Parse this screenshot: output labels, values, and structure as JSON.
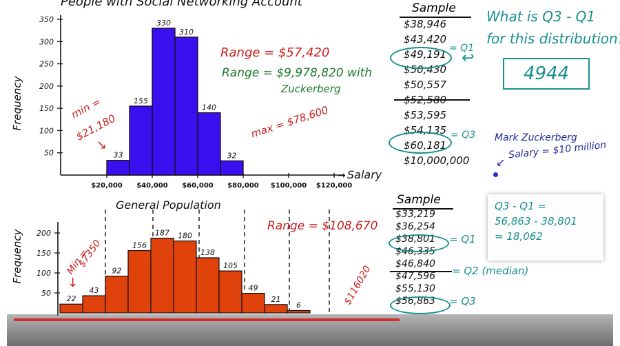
{
  "chart_data": [
    {
      "type": "bar",
      "title": "People with Social Networking Account",
      "xlabel": "Salary",
      "ylabel": "Frequency",
      "ylim": [
        0,
        350
      ],
      "yticks": [
        "50",
        "100",
        "150",
        "200",
        "250",
        "300",
        "350"
      ],
      "xticks": [
        "$20,000",
        "$40,000",
        "$60,000",
        "$80,000",
        "$100,000",
        "$120,000"
      ],
      "categories": [
        "$20,000-$30,000",
        "$30,000-$40,000",
        "$40,000-$50,000",
        "$50,000-$60,000",
        "$60,000-$70,000",
        "$70,000-$80,000"
      ],
      "values": [
        33,
        155,
        330,
        310,
        140,
        32
      ],
      "data_labels": [
        "33",
        "155",
        "330",
        "310",
        "140",
        "32"
      ],
      "bar_color": "#3b10f0"
    },
    {
      "type": "bar",
      "title": "General Population",
      "ylabel": "Frequency",
      "ylim": [
        0,
        200
      ],
      "yticks": [
        "50",
        "100",
        "150",
        "200"
      ],
      "values": [
        22,
        43,
        92,
        156,
        187,
        180,
        138,
        105,
        49,
        21,
        6
      ],
      "data_labels": [
        "22",
        "43",
        "92",
        "156",
        "187",
        "180",
        "138",
        "105",
        "49",
        "21",
        "6"
      ],
      "bar_color": "#e0420c"
    }
  ],
  "annotations_top": {
    "min_label": "min =",
    "min_value": "$21,180",
    "max_label": "max = $78,600",
    "range": "Range = $57,420",
    "range2_line1": "Range = $9,978,820 with",
    "range2_line2": "Zuckerberg"
  },
  "sample_top": {
    "header": "Sample",
    "values": [
      "$38,946",
      "$43,420",
      "$49,191",
      "$50,430",
      "$50,557",
      "$52,580",
      "$53,595",
      "$54,135",
      "$60,181",
      "$10,000,000"
    ],
    "q1_tag": "= Q1",
    "q3_tag": "= Q3"
  },
  "question": {
    "line1": "What is Q3 - Q1",
    "line2": "for this distribution?",
    "answer": "4944"
  },
  "zuckerberg": {
    "line1": "Mark Zuckerberg",
    "line2": "Salary = $10 million"
  },
  "annotations_bottom": {
    "min_label": "Min =",
    "min_value": "$7350",
    "range": "Range = $108,670",
    "max_value": "$116020"
  },
  "sample_bottom": {
    "header": "Sample",
    "values": [
      "$33,219",
      "$36,254",
      "$38,801",
      "$46,335",
      "$46,840",
      "$47,596",
      "$55,130",
      "$56,863"
    ],
    "q1_tag": "= Q1",
    "q2_tag": "= Q2 (median)",
    "q3_tag": "= Q3"
  },
  "calc_box": {
    "line1": "Q3 - Q1 =",
    "line2": "56,863 - 38,801",
    "line3": "= 18,062"
  },
  "colors": {
    "red": "#cc1f1f",
    "green": "#1e7a2e",
    "teal": "#1a8f8f",
    "blue_bars": "#3b10f0",
    "orange_bars": "#e0420c"
  }
}
